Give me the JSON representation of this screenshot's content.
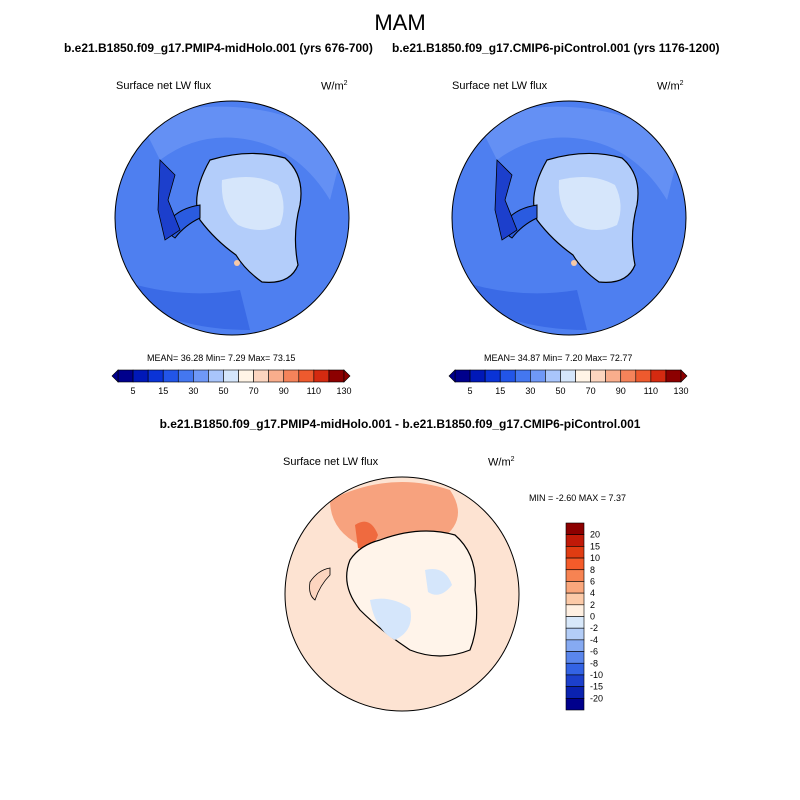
{
  "figure": {
    "season": "MAM"
  },
  "panels": [
    {
      "title": "b.e21.B1850.f09_g17.PMIP4-midHolo.001 (yrs 676-700)",
      "variable": "Surface net LW flux",
      "units": "W/m",
      "units_exp": "2",
      "stats": "MEAN=  36.28  Min=   7.29  Max=  73.15"
    },
    {
      "title": "b.e21.B1850.f09_g17.CMIP6-piControl.001 (yrs 1176-1200)",
      "variable": "Surface net LW flux",
      "units": "W/m",
      "units_exp": "2",
      "stats": "MEAN=  34.87  Min=   7.20  Max=  72.77"
    },
    {
      "title": "b.e21.B1850.f09_g17.PMIP4-midHolo.001 - b.e21.B1850.f09_g17.CMIP6-piControl.001",
      "variable": "Surface net LW flux",
      "units": "W/m",
      "units_exp": "2",
      "stats": "MIN =  -2.60 MAX =   7.37"
    }
  ],
  "colorbar_h": {
    "colors": [
      "#00008c",
      "#0018b8",
      "#0a33d6",
      "#2255e8",
      "#4477f0",
      "#6f98f7",
      "#a9c5fb",
      "#d5e6fb",
      "#fff4e6",
      "#fcd5bf",
      "#f9ad8c",
      "#f5835a",
      "#ee5a2e",
      "#d42a10",
      "#8c0000"
    ],
    "labels": [
      "5",
      "15",
      "30",
      "50",
      "70",
      "90",
      "110",
      "130"
    ]
  },
  "colorbar_v": {
    "colors": [
      "#8c0000",
      "#c01a08",
      "#e03c12",
      "#f45b2a",
      "#f78352",
      "#faa77c",
      "#fccaa8",
      "#fff0e2",
      "#d8e8fa",
      "#b3cdf7",
      "#86aaf2",
      "#5a86ec",
      "#3363e4",
      "#1c40cc",
      "#0a22b0",
      "#00008c"
    ],
    "labels": [
      "20",
      "15",
      "10",
      "8",
      "6",
      "4",
      "2",
      "0",
      "-2",
      "-4",
      "-6",
      "-8",
      "-10",
      "-15",
      "-20"
    ]
  }
}
